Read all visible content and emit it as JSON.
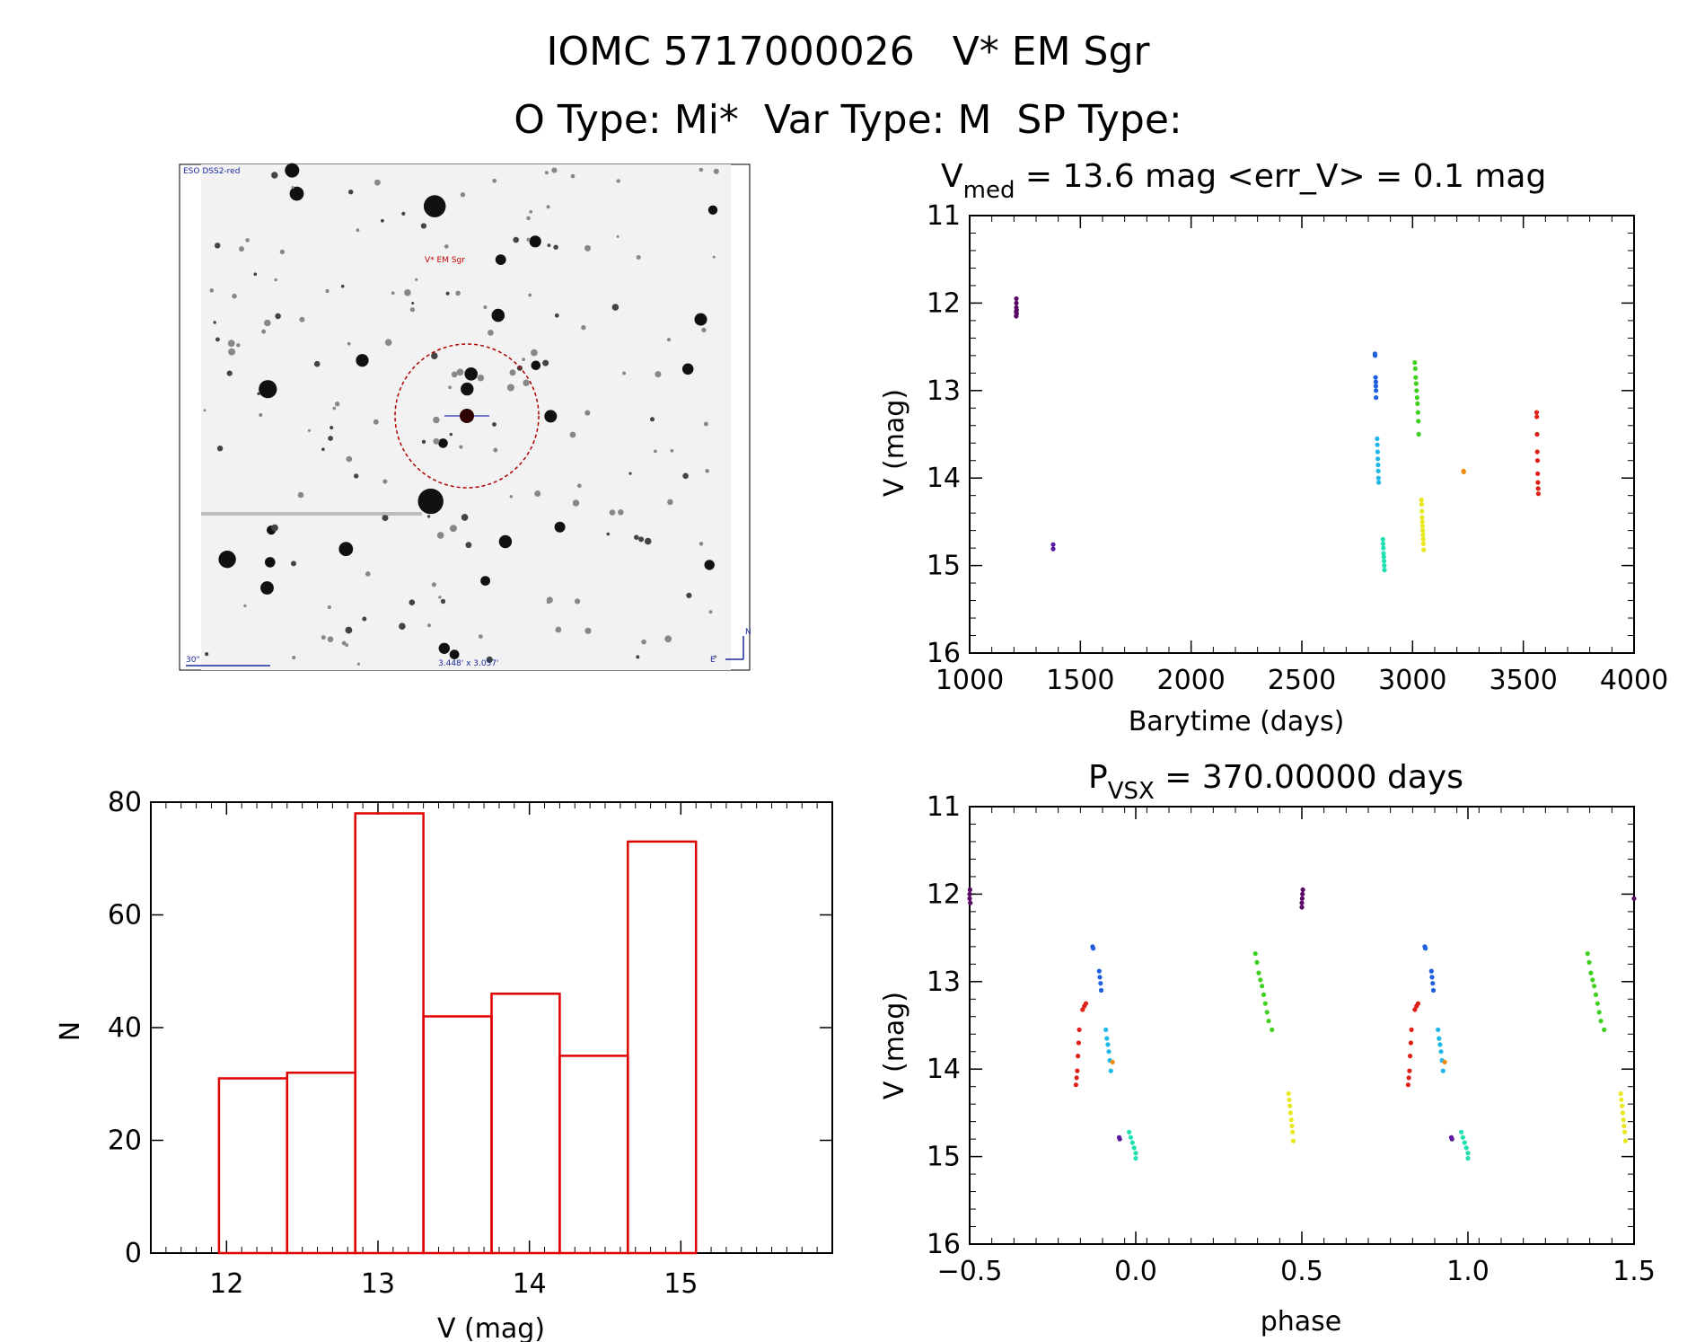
{
  "header": {
    "line1": "IOMC 5717000026   V* EM Sgr",
    "line2": "O Type: Mi*  Var Type: M  SP Type:"
  },
  "finder": {
    "survey_label": "ESO DSS2-red",
    "target_label": "V* EM Sgr",
    "scale_label": "30\"",
    "fov_label": "3.448' x 3.057'",
    "north_label": "N",
    "east_label": "E"
  },
  "colors": {
    "purple": "#5a0a66",
    "indigo": "#5a1aa0",
    "blue": "#1f5fe0",
    "cyan": "#20b8e6",
    "teal": "#20e0b0",
    "green": "#40d020",
    "yellow": "#e8e820",
    "orange": "#f08c10",
    "red": "#e02018",
    "hist": "#e00000"
  },
  "chart_data": [
    {
      "type": "scatter",
      "title_parts": {
        "base": "V",
        "sub": "med",
        "rest": " = 13.6 mag <err_V> = 0.1 mag"
      },
      "xlabel": "Barytime (days)",
      "ylabel": "V (mag)",
      "xlim": [
        1000,
        4000
      ],
      "ylim": [
        16,
        11
      ],
      "y_inverted": true,
      "x_ticks": [
        1000,
        1500,
        2000,
        2500,
        3000,
        3500,
        4000
      ],
      "x_tick_labels": [
        "1000",
        "1500",
        "2000",
        "2500",
        "3000",
        "3500",
        "4000"
      ],
      "y_ticks": [
        11,
        12,
        13,
        14,
        15,
        16
      ],
      "y_tick_labels": [
        "11",
        "12",
        "13",
        "14",
        "15",
        "16"
      ],
      "series": [
        {
          "color_key": "purple",
          "x": [
            1210,
            1210,
            1211,
            1211,
            1211,
            1212,
            1212
          ],
          "y": [
            12.15,
            12.1,
            12.05,
            12.0,
            11.95,
            12.08,
            12.12
          ]
        },
        {
          "color_key": "indigo",
          "x": [
            1377,
            1377
          ],
          "y": [
            14.76,
            14.81
          ]
        },
        {
          "color_key": "blue",
          "x": [
            2830,
            2831,
            2833,
            2834,
            2834,
            2835,
            2835
          ],
          "y": [
            12.58,
            12.6,
            12.85,
            12.9,
            12.95,
            13.0,
            13.08
          ]
        },
        {
          "color_key": "cyan",
          "x": [
            2840,
            2841,
            2842,
            2843,
            2844,
            2845,
            2846,
            2847
          ],
          "y": [
            13.55,
            13.62,
            13.7,
            13.78,
            13.85,
            13.92,
            14.0,
            14.05
          ]
        },
        {
          "color_key": "teal",
          "x": [
            2866,
            2867,
            2868,
            2869,
            2870,
            2871,
            2872,
            2873
          ],
          "y": [
            14.7,
            14.75,
            14.8,
            14.86,
            14.9,
            14.95,
            15.0,
            15.05
          ]
        },
        {
          "color_key": "green",
          "x": [
            3010,
            3012,
            3014,
            3016,
            3018,
            3020,
            3022,
            3024,
            3026,
            3028
          ],
          "y": [
            12.68,
            12.75,
            12.85,
            12.92,
            13.0,
            13.08,
            13.15,
            13.25,
            13.35,
            13.5
          ]
        },
        {
          "color_key": "yellow",
          "x": [
            3040,
            3041,
            3042,
            3043,
            3044,
            3045,
            3046,
            3047,
            3048,
            3049,
            3050
          ],
          "y": [
            14.25,
            14.3,
            14.38,
            14.45,
            14.5,
            14.55,
            14.6,
            14.65,
            14.7,
            14.75,
            14.82
          ]
        },
        {
          "color_key": "orange",
          "x": [
            3230,
            3231
          ],
          "y": [
            13.92,
            13.93
          ]
        },
        {
          "color_key": "red",
          "x": [
            3560,
            3561,
            3562,
            3563,
            3564,
            3565,
            3566,
            3567,
            3568
          ],
          "y": [
            13.25,
            13.3,
            13.5,
            13.7,
            13.8,
            13.95,
            14.05,
            14.12,
            14.18
          ]
        }
      ]
    },
    {
      "type": "scatter",
      "title_parts": {
        "base": "P",
        "sub": "VSX",
        "rest": " = 370.00000 days"
      },
      "xlabel": "phase",
      "ylabel": "V (mag)",
      "xlim": [
        -0.5,
        1.5
      ],
      "ylim": [
        16,
        11
      ],
      "y_inverted": true,
      "x_ticks": [
        -0.5,
        0.0,
        0.5,
        1.0,
        1.5
      ],
      "x_tick_labels": [
        "−0.5",
        "0.0",
        "0.5",
        "1.0",
        "1.5"
      ],
      "y_ticks": [
        11,
        12,
        13,
        14,
        15,
        16
      ],
      "y_tick_labels": [
        "11",
        "12",
        "13",
        "14",
        "15",
        "16"
      ],
      "series": [
        {
          "color_key": "purple",
          "x": [
            -0.5,
            -0.5,
            -0.499,
            -0.498,
            0.5,
            0.5,
            0.501,
            0.502,
            0.503,
            1.5
          ],
          "y": [
            12.05,
            12.0,
            11.95,
            12.1,
            12.15,
            12.1,
            12.05,
            12.0,
            11.95,
            12.05
          ]
        },
        {
          "color_key": "indigo",
          "x": [
            -0.05,
            -0.048,
            0.95,
            0.952
          ],
          "y": [
            14.78,
            14.8,
            14.78,
            14.8
          ]
        },
        {
          "color_key": "blue",
          "x": [
            -0.13,
            -0.128,
            -0.11,
            -0.108,
            -0.106,
            -0.104,
            0.87,
            0.872,
            0.89,
            0.892,
            0.894,
            0.896
          ],
          "y": [
            12.6,
            12.62,
            12.88,
            12.95,
            13.02,
            13.1,
            12.6,
            12.62,
            12.88,
            12.95,
            13.02,
            13.1
          ]
        },
        {
          "color_key": "cyan",
          "x": [
            -0.09,
            -0.087,
            -0.084,
            -0.081,
            -0.078,
            -0.075,
            0.91,
            0.913,
            0.916,
            0.919,
            0.922,
            0.925
          ],
          "y": [
            13.55,
            13.65,
            13.72,
            13.8,
            13.9,
            14.02,
            13.55,
            13.65,
            13.72,
            13.8,
            13.9,
            14.02
          ]
        },
        {
          "color_key": "teal",
          "x": [
            -0.02,
            -0.015,
            -0.01,
            -0.005,
            0.0,
            0.0,
            0.98,
            0.985,
            0.99,
            0.995,
            1.0,
            1.0
          ],
          "y": [
            14.72,
            14.78,
            14.84,
            14.9,
            14.96,
            15.02,
            14.72,
            14.78,
            14.84,
            14.9,
            14.96,
            15.02
          ]
        },
        {
          "color_key": "green",
          "x": [
            0.36,
            0.365,
            0.37,
            0.375,
            0.38,
            0.385,
            0.39,
            0.395,
            0.4,
            0.41,
            1.36,
            1.365,
            1.37,
            1.375,
            1.38,
            1.385,
            1.39,
            1.395,
            1.4,
            1.41
          ],
          "y": [
            12.68,
            12.78,
            12.9,
            12.98,
            13.05,
            13.15,
            13.25,
            13.35,
            13.45,
            13.55,
            12.68,
            12.78,
            12.9,
            12.98,
            13.05,
            13.15,
            13.25,
            13.35,
            13.45,
            13.55
          ]
        },
        {
          "color_key": "yellow",
          "x": [
            0.46,
            0.462,
            0.464,
            0.466,
            0.468,
            0.47,
            0.472,
            0.474,
            1.46,
            1.462,
            1.464,
            1.466,
            1.468,
            1.47,
            1.472,
            1.474
          ],
          "y": [
            14.28,
            14.35,
            14.42,
            14.5,
            14.58,
            14.65,
            14.72,
            14.82,
            14.28,
            14.35,
            14.42,
            14.5,
            14.58,
            14.65,
            14.72,
            14.82
          ]
        },
        {
          "color_key": "orange",
          "x": [
            -0.07,
            0.93
          ],
          "y": [
            13.92,
            13.92
          ]
        },
        {
          "color_key": "red",
          "x": [
            -0.18,
            -0.178,
            -0.176,
            -0.174,
            -0.172,
            -0.17,
            -0.16,
            -0.155,
            -0.15,
            0.82,
            0.822,
            0.824,
            0.826,
            0.828,
            0.83,
            0.84,
            0.845,
            0.85
          ],
          "y": [
            14.18,
            14.1,
            14.02,
            13.85,
            13.7,
            13.55,
            13.32,
            13.28,
            13.25,
            14.18,
            14.1,
            14.02,
            13.85,
            13.7,
            13.55,
            13.32,
            13.28,
            13.25
          ]
        }
      ]
    },
    {
      "type": "bar",
      "xlabel": "V (mag)",
      "ylabel": "N",
      "xlim": [
        11.5,
        16.0
      ],
      "ylim": [
        0,
        80
      ],
      "x_ticks": [
        12,
        13,
        14,
        15
      ],
      "x_tick_labels": [
        "12",
        "13",
        "14",
        "15"
      ],
      "y_ticks": [
        0,
        20,
        40,
        60,
        80
      ],
      "y_tick_labels": [
        "0",
        "20",
        "40",
        "60",
        "80"
      ],
      "bins": [
        {
          "x0": 11.95,
          "x1": 12.4,
          "value": 31
        },
        {
          "x0": 12.4,
          "x1": 12.85,
          "value": 32
        },
        {
          "x0": 12.85,
          "x1": 13.3,
          "value": 78
        },
        {
          "x0": 13.3,
          "x1": 13.75,
          "value": 42
        },
        {
          "x0": 13.75,
          "x1": 14.2,
          "value": 46
        },
        {
          "x0": 14.2,
          "x1": 14.65,
          "value": 35
        },
        {
          "x0": 14.65,
          "x1": 15.1,
          "value": 73
        }
      ]
    }
  ]
}
